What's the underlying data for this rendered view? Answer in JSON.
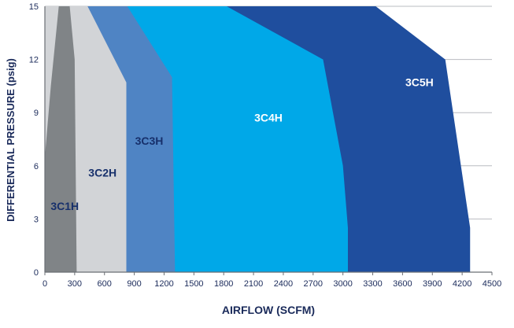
{
  "chart_data": {
    "type": "area",
    "title": "",
    "xlabel": "AIRFLOW (SCFM)",
    "ylabel": "DIFFERENTIAL PRESSURE (psig)",
    "xlim": [
      0,
      4500
    ],
    "ylim": [
      0,
      15
    ],
    "x_ticks": [
      "0",
      "300",
      "600",
      "900",
      "1200",
      "1500",
      "1800",
      "2100",
      "2400",
      "2700",
      "3000",
      "3300",
      "3600",
      "3900",
      "4200",
      "4500"
    ],
    "y_ticks": [
      "0",
      "3",
      "6",
      "9",
      "12",
      "15"
    ],
    "grid": "horizontal",
    "series": [
      {
        "name": "3C5H",
        "color": "#1f4e9e",
        "label_color": "#ffffff",
        "label_at": [
          3770,
          10.5
        ],
        "boundary": [
          [
            1830,
            15
          ],
          [
            3330,
            15
          ],
          [
            4030,
            12
          ],
          [
            4280,
            2.5
          ],
          [
            4280,
            0
          ]
        ]
      },
      {
        "name": "3C4H",
        "color": "#00a8e8",
        "label_color": "#ffffff",
        "label_at": [
          2250,
          8.5
        ],
        "boundary": [
          [
            830,
            15
          ],
          [
            1830,
            15
          ],
          [
            2800,
            12
          ],
          [
            3000,
            6
          ],
          [
            3050,
            2.5
          ],
          [
            3050,
            0
          ]
        ]
      },
      {
        "name": "3C3H",
        "color": "#4f84c4",
        "label_color": "#17306b",
        "label_at": [
          1050,
          7.2
        ],
        "boundary": [
          [
            430,
            15
          ],
          [
            830,
            15
          ],
          [
            1280,
            11
          ],
          [
            1310,
            0
          ]
        ]
      },
      {
        "name": "3C2H",
        "color": "#d2d4d7",
        "label_color": "#17306b",
        "label_at": [
          580,
          5.4
        ],
        "boundary": [
          [
            250,
            15
          ],
          [
            430,
            15
          ],
          [
            820,
            10.7
          ],
          [
            820,
            0
          ]
        ]
      },
      {
        "name": "3C1H",
        "color": "#808487",
        "label_color": "#17306b",
        "label_at": [
          200,
          3.5
        ],
        "boundary": [
          [
            0,
            6.5
          ],
          [
            60,
            10.5
          ],
          [
            140,
            15
          ],
          [
            250,
            15
          ],
          [
            300,
            12
          ],
          [
            320,
            0
          ]
        ]
      }
    ]
  }
}
